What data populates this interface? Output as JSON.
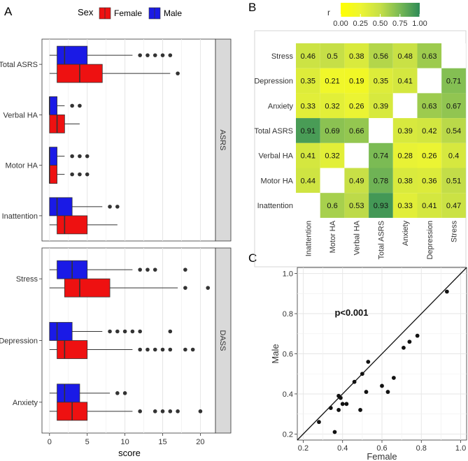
{
  "panel_labels": {
    "a": "A",
    "b": "B",
    "c": "C"
  },
  "colors": {
    "female": "#ee1111",
    "male": "#1a1ae6",
    "strip": "#d9d9d9",
    "grid": "#e6e6e6",
    "heat_low": "#ffff00",
    "heat_high": "#2e8b57"
  },
  "chart_data": [
    {
      "id": "A",
      "type": "boxplot",
      "title": "",
      "xlabel": "score",
      "xlim": [
        -1,
        22
      ],
      "xticks": [
        0,
        5,
        10,
        15,
        20
      ],
      "legend": {
        "title": "Sex",
        "entries": [
          "Female",
          "Male"
        ],
        "position": "top"
      },
      "facets": [
        {
          "strip": "ASRS",
          "categories": [
            {
              "label": "Total ASRS",
              "male": {
                "whislo": 0,
                "q1": 1,
                "med": 2,
                "q3": 5,
                "whishi": 11,
                "fliers": [
                  12,
                  13,
                  14,
                  15,
                  16
                ]
              },
              "female": {
                "whislo": 0,
                "q1": 1,
                "med": 4,
                "q3": 7,
                "whishi": 16,
                "fliers": [
                  17
                ]
              }
            },
            {
              "label": "Verbal HA",
              "male": {
                "whislo": 0,
                "q1": 0,
                "med": 0,
                "q3": 1,
                "whishi": 2,
                "fliers": [
                  3,
                  4
                ]
              },
              "female": {
                "whislo": 0,
                "q1": 0,
                "med": 1,
                "q3": 2,
                "whishi": 4,
                "fliers": []
              }
            },
            {
              "label": "Motor HA",
              "male": {
                "whislo": 0,
                "q1": 0,
                "med": 0,
                "q3": 1,
                "whishi": 2,
                "fliers": [
                  3,
                  4,
                  5
                ]
              },
              "female": {
                "whislo": 0,
                "q1": 0,
                "med": 0,
                "q3": 1,
                "whishi": 2,
                "fliers": [
                  3,
                  4,
                  5
                ]
              }
            },
            {
              "label": "Inattention",
              "male": {
                "whislo": 0,
                "q1": 0,
                "med": 1,
                "q3": 3,
                "whishi": 7,
                "fliers": [
                  8,
                  9
                ]
              },
              "female": {
                "whislo": 0,
                "q1": 1,
                "med": 2,
                "q3": 5,
                "whishi": 9,
                "fliers": []
              }
            }
          ]
        },
        {
          "strip": "DASS",
          "categories": [
            {
              "label": "Stress",
              "male": {
                "whislo": 0,
                "q1": 1,
                "med": 3,
                "q3": 5,
                "whishi": 11,
                "fliers": [
                  12,
                  13,
                  14,
                  18
                ]
              },
              "female": {
                "whislo": 0,
                "q1": 2,
                "med": 4,
                "q3": 8,
                "whishi": 17,
                "fliers": [
                  18,
                  21
                ]
              }
            },
            {
              "label": "Depression",
              "male": {
                "whislo": 0,
                "q1": 0,
                "med": 1,
                "q3": 3,
                "whishi": 7,
                "fliers": [
                  8,
                  9,
                  10,
                  11,
                  12,
                  16
                ]
              },
              "female": {
                "whislo": 0,
                "q1": 1,
                "med": 2,
                "q3": 5,
                "whishi": 11,
                "fliers": [
                  12,
                  13,
                  14,
                  15,
                  16,
                  18,
                  19
                ]
              }
            },
            {
              "label": "Anxiety",
              "male": {
                "whislo": 0,
                "q1": 1,
                "med": 2,
                "q3": 4,
                "whishi": 8,
                "fliers": [
                  9,
                  10
                ]
              },
              "female": {
                "whislo": 0,
                "q1": 1,
                "med": 3,
                "q3": 5,
                "whishi": 11,
                "fliers": [
                  12,
                  14,
                  15,
                  16,
                  17,
                  20
                ]
              }
            }
          ]
        }
      ]
    },
    {
      "id": "B",
      "type": "heatmap",
      "title": "",
      "colorbar": {
        "label": "r",
        "ticks": [
          "0.00",
          "0.25",
          "0.50",
          "0.75",
          "1.00"
        ],
        "range": [
          0,
          1
        ]
      },
      "x_labels": [
        "Inattention",
        "Motor HA",
        "Verbal HA",
        "Total ASRS",
        "Anxiety",
        "Depression",
        "Stress"
      ],
      "y_labels": [
        "Stress",
        "Depression",
        "Anxiety",
        "Total ASRS",
        "Verbal HA",
        "Motor HA",
        "Inattention"
      ],
      "cells": [
        [
          "0.46",
          "0.5",
          "0.38",
          "0.56",
          "0.48",
          "0.63",
          null
        ],
        [
          "0.35",
          "0.21",
          "0.19",
          "0.35",
          "0.41",
          null,
          "0.71"
        ],
        [
          "0.33",
          "0.32",
          "0.26",
          "0.39",
          null,
          "0.63",
          "0.67"
        ],
        [
          "0.91",
          "0.69",
          "0.66",
          null,
          "0.39",
          "0.42",
          "0.54"
        ],
        [
          "0.41",
          "0.32",
          null,
          "0.74",
          "0.28",
          "0.26",
          "0.4"
        ],
        [
          "0.44",
          null,
          "0.49",
          "0.78",
          "0.38",
          "0.36",
          "0.51"
        ],
        [
          null,
          "0.6",
          "0.53",
          "0.93",
          "0.33",
          "0.41",
          "0.47"
        ]
      ]
    },
    {
      "id": "C",
      "type": "scatter",
      "title": "",
      "xlabel": "Female",
      "ylabel": "Male",
      "xlim": [
        0.17,
        1.03
      ],
      "ylim": [
        0.17,
        1.03
      ],
      "xticks": [
        "0.2",
        "0.4",
        "0.6",
        "0.8",
        "1.0"
      ],
      "yticks": [
        "0.2",
        "0.4",
        "0.6",
        "0.8",
        "1.0"
      ],
      "annotation": "p<0.001",
      "reference_line": "identity",
      "points": [
        [
          0.28,
          0.26
        ],
        [
          0.36,
          0.21
        ],
        [
          0.34,
          0.33
        ],
        [
          0.38,
          0.32
        ],
        [
          0.38,
          0.39
        ],
        [
          0.39,
          0.38
        ],
        [
          0.4,
          0.35
        ],
        [
          0.42,
          0.35
        ],
        [
          0.46,
          0.46
        ],
        [
          0.49,
          0.32
        ],
        [
          0.5,
          0.5
        ],
        [
          0.52,
          0.41
        ],
        [
          0.53,
          0.56
        ],
        [
          0.6,
          0.44
        ],
        [
          0.63,
          0.41
        ],
        [
          0.66,
          0.48
        ],
        [
          0.71,
          0.63
        ],
        [
          0.74,
          0.66
        ],
        [
          0.78,
          0.69
        ],
        [
          0.93,
          0.91
        ]
      ]
    }
  ]
}
